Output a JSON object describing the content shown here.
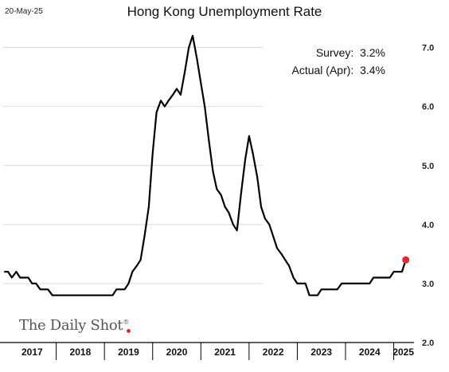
{
  "date_stamp": "20-May-25",
  "annotations": {
    "survey": "Survey:  3.2%",
    "actual": "Actual (Apr):  3.4%"
  },
  "watermark": "The Daily Shot",
  "colors": {
    "line": "#000000",
    "latest_point": "#e8262b",
    "grid": "#d9d9d9"
  },
  "chart_data": {
    "type": "line",
    "title": "Hong Kong Unemployment Rate",
    "xlabel": "",
    "ylabel": "",
    "ylim": [
      2.0,
      7.4
    ],
    "yticks": [
      "2.0",
      "3.0",
      "4.0",
      "5.0",
      "6.0",
      "7.0"
    ],
    "ytick_values": [
      2.0,
      3.0,
      4.0,
      5.0,
      6.0,
      7.0
    ],
    "y_axis_side": "right",
    "grid": "horizontal",
    "xlim": [
      2016.9,
      2025.42
    ],
    "year_ticks": [
      "2017",
      "2018",
      "2019",
      "2020",
      "2021",
      "2022",
      "2023",
      "2024",
      "2025"
    ],
    "year_tick_positions": [
      2017.5,
      2018.5,
      2019.5,
      2020.5,
      2021.5,
      2022.5,
      2023.5,
      2024.5,
      2025.2
    ],
    "year_boundaries": [
      2018,
      2019,
      2020,
      2021,
      2022,
      2023,
      2024,
      2025
    ],
    "series": [
      {
        "name": "",
        "x": [
          2016.92,
          2017.0,
          2017.08,
          2017.17,
          2017.25,
          2017.33,
          2017.42,
          2017.5,
          2017.58,
          2017.67,
          2017.75,
          2017.83,
          2017.92,
          2018.0,
          2018.08,
          2018.17,
          2018.25,
          2018.33,
          2018.42,
          2018.5,
          2018.58,
          2018.67,
          2018.75,
          2018.83,
          2018.92,
          2019.0,
          2019.08,
          2019.17,
          2019.25,
          2019.33,
          2019.42,
          2019.5,
          2019.58,
          2019.67,
          2019.75,
          2019.83,
          2019.92,
          2020.0,
          2020.08,
          2020.17,
          2020.25,
          2020.33,
          2020.42,
          2020.5,
          2020.58,
          2020.67,
          2020.75,
          2020.83,
          2020.92,
          2021.0,
          2021.08,
          2021.17,
          2021.25,
          2021.33,
          2021.42,
          2021.5,
          2021.58,
          2021.67,
          2021.75,
          2021.83,
          2021.92,
          2022.0,
          2022.08,
          2022.17,
          2022.25,
          2022.33,
          2022.42,
          2022.5,
          2022.58,
          2022.67,
          2022.75,
          2022.83,
          2022.92,
          2023.0,
          2023.08,
          2023.17,
          2023.25,
          2023.33,
          2023.42,
          2023.5,
          2023.58,
          2023.67,
          2023.75,
          2023.83,
          2023.92,
          2024.0,
          2024.08,
          2024.17,
          2024.25,
          2024.33,
          2024.42,
          2024.5,
          2024.58,
          2024.67,
          2024.75,
          2024.83,
          2024.92,
          2025.0,
          2025.08,
          2025.17,
          2025.25
        ],
        "y": [
          3.2,
          3.2,
          3.1,
          3.2,
          3.1,
          3.1,
          3.1,
          3.0,
          3.0,
          2.9,
          2.9,
          2.9,
          2.8,
          2.8,
          2.8,
          2.8,
          2.8,
          2.8,
          2.8,
          2.8,
          2.8,
          2.8,
          2.8,
          2.8,
          2.8,
          2.8,
          2.8,
          2.8,
          2.9,
          2.9,
          2.9,
          3.0,
          3.2,
          3.3,
          3.4,
          3.8,
          4.3,
          5.2,
          5.9,
          6.1,
          6.0,
          6.1,
          6.2,
          6.3,
          6.2,
          6.6,
          7.0,
          7.2,
          6.8,
          6.4,
          6.0,
          5.4,
          4.9,
          4.6,
          4.5,
          4.3,
          4.2,
          4.0,
          3.9,
          4.5,
          5.1,
          5.5,
          5.2,
          4.8,
          4.3,
          4.1,
          4.0,
          3.8,
          3.6,
          3.5,
          3.4,
          3.3,
          3.1,
          3.0,
          3.0,
          3.0,
          2.8,
          2.8,
          2.8,
          2.9,
          2.9,
          2.9,
          2.9,
          2.9,
          3.0,
          3.0,
          3.0,
          3.0,
          3.0,
          3.0,
          3.0,
          3.0,
          3.1,
          3.1,
          3.1,
          3.1,
          3.1,
          3.2,
          3.2,
          3.2,
          3.4
        ]
      }
    ],
    "highlight_point": {
      "x": 2025.25,
      "y": 3.4
    }
  }
}
